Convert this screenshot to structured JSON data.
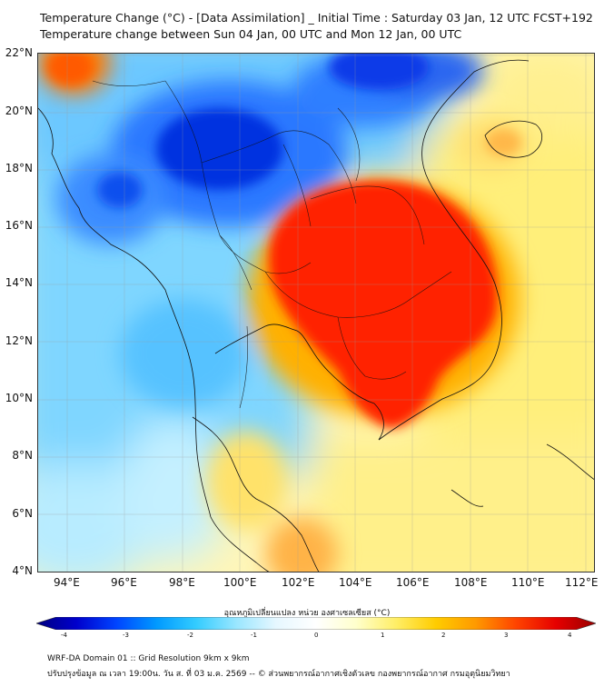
{
  "title": {
    "line1": "Temperature Change (°C) - [Data Assimilation] _ Initial Time : Saturday 03 Jan, 12 UTC FCST+192",
    "line2": "Temperature change between Sun 04 Jan, 00 UTC and Mon 12 Jan, 00 UTC"
  },
  "map": {
    "lat_labels": [
      "22°N",
      "20°N",
      "18°N",
      "16°N",
      "14°N",
      "12°N",
      "10°N",
      "8°N",
      "6°N",
      "4°N"
    ],
    "lon_labels": [
      "94°E",
      "96°E",
      "98°E",
      "100°E",
      "102°E",
      "104°E",
      "106°E",
      "108°E",
      "110°E",
      "112°E"
    ]
  },
  "colorbar": {
    "title": "อุณหภูมิเปลี่ยนแปลง หน่วย องศาเซลเซียส (°C)",
    "ticks": [
      "-4",
      "-3",
      "-2",
      "-1",
      "0",
      "1",
      "2",
      "3",
      "4"
    ],
    "colors": [
      "#00007f",
      "#0000cc",
      "#0044ff",
      "#0099ff",
      "#33ccff",
      "#99e6ff",
      "#e6f7ff",
      "#ffffff",
      "#ffffcc",
      "#ffee66",
      "#ffcc00",
      "#ff9900",
      "#ff4400",
      "#e60000",
      "#990000"
    ]
  },
  "footer": {
    "line1": "WRF-DA Domain 01 :: Grid Resolution 9km x 9km",
    "line2": "ปรับปรุงข้อมูล ณ เวลา 19:00น. วัน ส. ที่ 03 ม.ค. 2569 -- © ส่วนพยากรณ์อากาศเชิงตัวเลข กองพยากรณ์อากาศ กรมอุตุนิยมวิทยา"
  }
}
